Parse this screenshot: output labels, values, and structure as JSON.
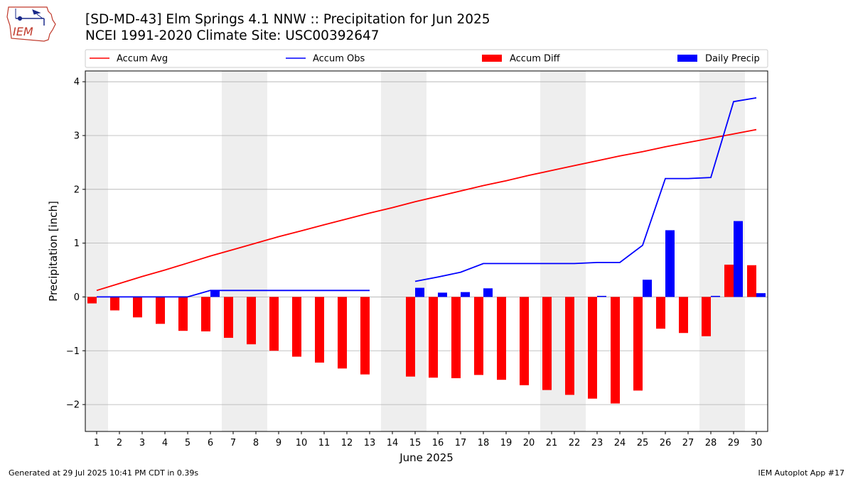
{
  "header": {
    "title_line1": "[SD-MD-43] Elm Springs 4.1 NNW :: Precipitation for Jun 2025",
    "title_line2": "NCEI 1991-2020 Climate Site: USC00392647"
  },
  "logo": {
    "text": "IEM"
  },
  "footer": {
    "generated": "Generated at 29 Jul 2025 10:41 PM CDT in 0.39s",
    "app": "IEM Autoplot App #17"
  },
  "colors": {
    "avg": "#ff0000",
    "obs": "#0000ff",
    "diff": "#ff0000",
    "daily": "#0000ff",
    "weekend": "#eeeeee",
    "grid": "#b0b0b0"
  },
  "chart_data": {
    "type": "bar",
    "xlabel": "June 2025",
    "ylabel": "Precipitation [inch]",
    "ylim": [
      -2.5,
      4.2
    ],
    "yticks": [
      -2,
      -1,
      0,
      1,
      2,
      3,
      4
    ],
    "ytick_labels": [
      "−2",
      "−1",
      "0",
      "1",
      "2",
      "3",
      "4"
    ],
    "grid": "horizontal",
    "legend_position": "top",
    "days": [
      1,
      2,
      3,
      4,
      5,
      6,
      7,
      8,
      9,
      10,
      11,
      12,
      13,
      14,
      15,
      16,
      17,
      18,
      19,
      20,
      21,
      22,
      23,
      24,
      25,
      26,
      27,
      28,
      29,
      30
    ],
    "weekend_spans": [
      [
        1,
        1
      ],
      [
        7,
        8
      ],
      [
        14,
        15
      ],
      [
        21,
        22
      ],
      [
        28,
        29
      ]
    ],
    "series": [
      {
        "name": "Accum Avg",
        "type": "line",
        "values": [
          0.12,
          0.25,
          0.38,
          0.5,
          0.63,
          0.76,
          0.88,
          1.0,
          1.12,
          1.23,
          1.34,
          1.45,
          1.56,
          1.66,
          1.77,
          1.87,
          1.97,
          2.07,
          2.16,
          2.26,
          2.35,
          2.44,
          2.53,
          2.62,
          2.7,
          2.79,
          2.87,
          2.95,
          3.03,
          3.11
        ]
      },
      {
        "name": "Accum Obs",
        "type": "line",
        "values": [
          0,
          0,
          0,
          0,
          0,
          0.12,
          0.12,
          0.12,
          0.12,
          0.12,
          0.12,
          0.12,
          0.12,
          null,
          0.29,
          0.37,
          0.46,
          0.62,
          0.62,
          0.62,
          0.62,
          0.62,
          0.64,
          0.64,
          0.96,
          2.2,
          2.2,
          2.22,
          3.63,
          3.7
        ]
      },
      {
        "name": "Accum Diff",
        "type": "bar",
        "values": [
          -0.12,
          -0.25,
          -0.38,
          -0.5,
          -0.63,
          -0.64,
          -0.76,
          -0.88,
          -1.0,
          -1.11,
          -1.22,
          -1.33,
          -1.44,
          null,
          -1.48,
          -1.5,
          -1.51,
          -1.45,
          -1.54,
          -1.64,
          -1.73,
          -1.82,
          -1.89,
          -1.98,
          -1.74,
          -0.59,
          -0.67,
          -0.73,
          0.6,
          0.59
        ]
      },
      {
        "name": "Daily Precip",
        "type": "bar",
        "values": [
          0,
          0,
          0,
          0,
          0,
          0.12,
          0,
          0,
          0,
          0,
          0,
          0,
          0,
          null,
          0.17,
          0.08,
          0.09,
          0.16,
          0,
          0,
          0,
          0,
          0.02,
          0,
          0.32,
          1.24,
          0,
          0.02,
          1.41,
          0.07
        ]
      }
    ]
  }
}
